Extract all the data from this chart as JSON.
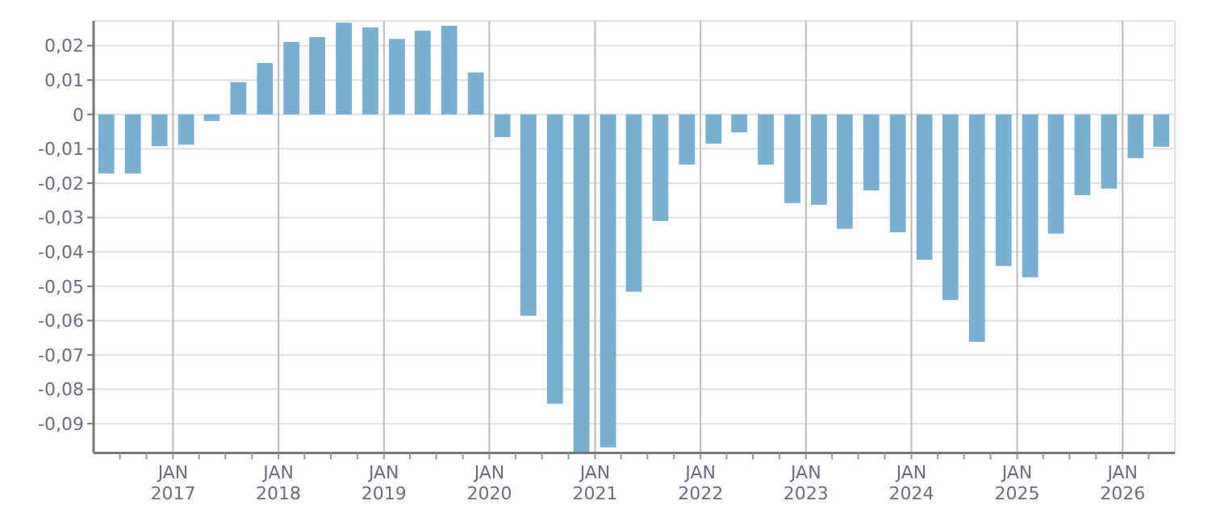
{
  "chart_data": {
    "type": "bar",
    "color": "#78b0d3",
    "x": [
      "2016-05-15",
      "2016-08-15",
      "2016-11-15",
      "2017-02-15",
      "2017-05-15",
      "2017-08-15",
      "2017-11-15",
      "2018-02-15",
      "2018-05-15",
      "2018-08-15",
      "2018-11-15",
      "2019-02-15",
      "2019-05-15",
      "2019-08-15",
      "2019-11-15",
      "2020-02-15",
      "2020-05-15",
      "2020-08-15",
      "2020-11-15",
      "2021-02-15",
      "2021-05-15",
      "2021-08-15",
      "2021-11-15",
      "2022-02-15",
      "2022-05-15",
      "2022-08-15",
      "2022-11-15",
      "2023-02-15",
      "2023-05-15",
      "2023-08-15",
      "2023-11-15",
      "2024-02-15",
      "2024-05-15",
      "2024-08-15",
      "2024-11-15",
      "2025-02-15",
      "2025-05-15",
      "2025-08-15",
      "2025-11-15",
      "2026-02-15",
      "2026-05-15"
    ],
    "values": [
      -0.0172,
      -0.0172,
      -0.0092,
      -0.0088,
      -0.0019,
      0.0094,
      0.015,
      0.0211,
      0.0225,
      0.0267,
      0.0253,
      0.022,
      0.0244,
      0.0258,
      0.0122,
      -0.0066,
      -0.0586,
      -0.0842,
      -0.0985,
      -0.0969,
      -0.0516,
      -0.031,
      -0.0146,
      -0.0085,
      -0.0052,
      -0.0146,
      -0.0258,
      -0.0263,
      -0.0333,
      -0.0221,
      -0.0343,
      -0.0423,
      -0.054,
      -0.0662,
      -0.0441,
      -0.0474,
      -0.0347,
      -0.0235,
      -0.0216,
      -0.0127,
      -0.0094
    ],
    "xlim": [
      "2016-04-01",
      "2026-07-01"
    ],
    "xticks": [
      {
        "value": "2016-07-01",
        "label": null
      },
      {
        "value": "2016-10-01",
        "label": null
      },
      {
        "value": "2017-01-01",
        "label": "JAN\n2017"
      },
      {
        "value": "2017-04-01",
        "label": null
      },
      {
        "value": "2017-07-01",
        "label": null
      },
      {
        "value": "2017-10-01",
        "label": null
      },
      {
        "value": "2018-01-01",
        "label": "JAN\n2018"
      },
      {
        "value": "2018-04-01",
        "label": null
      },
      {
        "value": "2018-07-01",
        "label": null
      },
      {
        "value": "2018-10-01",
        "label": null
      },
      {
        "value": "2019-01-01",
        "label": "JAN\n2019"
      },
      {
        "value": "2019-04-01",
        "label": null
      },
      {
        "value": "2019-07-01",
        "label": null
      },
      {
        "value": "2019-10-01",
        "label": null
      },
      {
        "value": "2020-01-01",
        "label": "JAN\n2020"
      },
      {
        "value": "2020-04-01",
        "label": null
      },
      {
        "value": "2020-07-01",
        "label": null
      },
      {
        "value": "2020-10-01",
        "label": null
      },
      {
        "value": "2021-01-01",
        "label": "JAN\n2021"
      },
      {
        "value": "2021-04-01",
        "label": null
      },
      {
        "value": "2021-07-01",
        "label": null
      },
      {
        "value": "2021-10-01",
        "label": null
      },
      {
        "value": "2022-01-01",
        "label": "JAN\n2022"
      },
      {
        "value": "2022-04-01",
        "label": null
      },
      {
        "value": "2022-07-01",
        "label": null
      },
      {
        "value": "2022-10-01",
        "label": null
      },
      {
        "value": "2023-01-01",
        "label": "JAN\n2023"
      },
      {
        "value": "2023-04-01",
        "label": null
      },
      {
        "value": "2023-07-01",
        "label": null
      },
      {
        "value": "2023-10-01",
        "label": null
      },
      {
        "value": "2024-01-01",
        "label": "JAN\n2024"
      },
      {
        "value": "2024-04-01",
        "label": null
      },
      {
        "value": "2024-07-01",
        "label": null
      },
      {
        "value": "2024-10-01",
        "label": null
      },
      {
        "value": "2025-01-01",
        "label": "JAN\n2025"
      },
      {
        "value": "2025-04-01",
        "label": null
      },
      {
        "value": "2025-07-01",
        "label": null
      },
      {
        "value": "2025-10-01",
        "label": null
      },
      {
        "value": "2026-01-01",
        "label": "JAN\n2026"
      },
      {
        "value": "2026-04-01",
        "label": null
      }
    ],
    "ylim": [
      -0.0985,
      0.0272
    ],
    "yticks": [
      {
        "value": -0.09,
        "label": "-0,09"
      },
      {
        "value": -0.08,
        "label": "-0,08"
      },
      {
        "value": -0.07,
        "label": "-0,07"
      },
      {
        "value": -0.06,
        "label": "-0,06"
      },
      {
        "value": -0.05,
        "label": "-0,05"
      },
      {
        "value": -0.04,
        "label": "-0,04"
      },
      {
        "value": -0.03,
        "label": "-0,03"
      },
      {
        "value": -0.02,
        "label": "-0,02"
      },
      {
        "value": -0.01,
        "label": "-0,01"
      },
      {
        "value": 0,
        "label": "0"
      },
      {
        "value": 0.01,
        "label": "0,01"
      },
      {
        "value": 0.02,
        "label": "0,02"
      }
    ],
    "grid": true
  }
}
